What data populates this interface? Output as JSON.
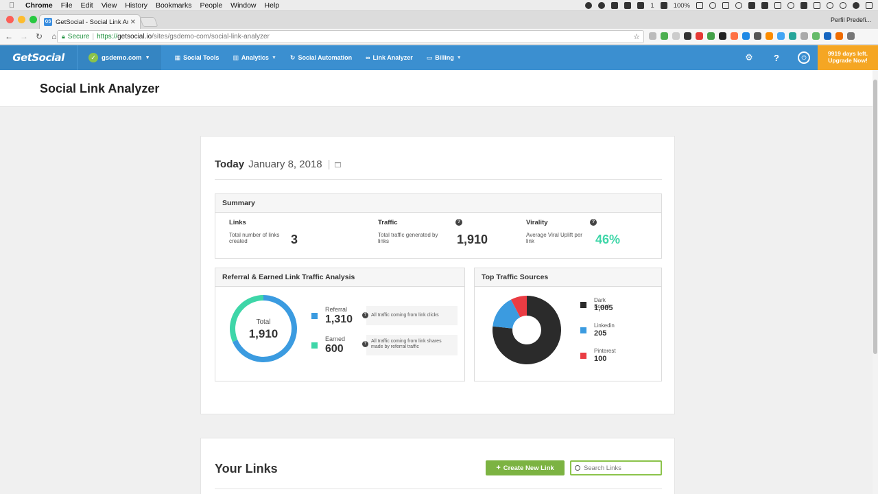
{
  "mac": {
    "menu": [
      "Chrome",
      "File",
      "Edit",
      "View",
      "History",
      "Bookmarks",
      "People",
      "Window",
      "Help"
    ],
    "battery": "100%",
    "status_number": "1"
  },
  "browser": {
    "tab_title": "GetSocial - Social Link Analyz",
    "tab_favicon": "GS",
    "profile": "Perfil Predefi...",
    "secure_label": "Secure",
    "url_scheme": "https://",
    "url_host": "getsocial.io",
    "url_path": "/sites/gsdemo-com/social-link-analyzer"
  },
  "nav": {
    "brand": "GetSocial",
    "site": "gsdemo.com",
    "items": [
      {
        "label": "Social Tools",
        "icon": "grid-icon"
      },
      {
        "label": "Analytics",
        "icon": "bar-chart-icon"
      },
      {
        "label": "Social Automation",
        "icon": "refresh-icon"
      },
      {
        "label": "Link Analyzer",
        "icon": "link-icon"
      },
      {
        "label": "Billing",
        "icon": "card-icon"
      }
    ],
    "upgrade_line1": "9919 days left.",
    "upgrade_line2": "Upgrade Now!"
  },
  "page": {
    "title": "Social Link Analyzer"
  },
  "date": {
    "today": "Today",
    "value": "January 8, 2018",
    "sep": "|"
  },
  "summary": {
    "title": "Summary",
    "links": {
      "label": "Links",
      "desc": "Total number of links created",
      "value": "3"
    },
    "traffic": {
      "label": "Traffic",
      "desc": "Total traffic generated by links",
      "value": "1,910"
    },
    "virality": {
      "label": "Virality",
      "desc": "Average Viral Uplift per link",
      "value": "46%"
    }
  },
  "referral": {
    "title": "Referral & Earned Link Traffic Analysis",
    "total_label": "Total",
    "total_value": "1,910",
    "items": [
      {
        "name": "Referral",
        "value": "1,310",
        "info": "All traffic coming from link clicks",
        "color": "#3b9be0"
      },
      {
        "name": "Earned",
        "value": "600",
        "info": "All traffic coming from link shares made by referral traffic",
        "color": "#3ed6a8"
      }
    ]
  },
  "sources": {
    "title": "Top Traffic Sources",
    "items": [
      {
        "name": "Dark Social",
        "value": "1,005",
        "color": "#2b2b2b"
      },
      {
        "name": "Linkedin",
        "value": "205",
        "color": "#3b9be0"
      },
      {
        "name": "Pinterest",
        "value": "100",
        "color": "#ea3c43"
      }
    ]
  },
  "chart_data": [
    {
      "type": "pie",
      "categories": [
        "Referral",
        "Earned"
      ],
      "values": [
        1310,
        600
      ],
      "title": "Referral & Earned Link Traffic Analysis"
    },
    {
      "type": "pie",
      "categories": [
        "Dark Social",
        "Linkedin",
        "Pinterest"
      ],
      "values": [
        1005,
        205,
        100
      ],
      "title": "Top Traffic Sources"
    }
  ],
  "links": {
    "title": "Your Links",
    "create_label": "Create New Link",
    "search_placeholder": "Search Links"
  }
}
